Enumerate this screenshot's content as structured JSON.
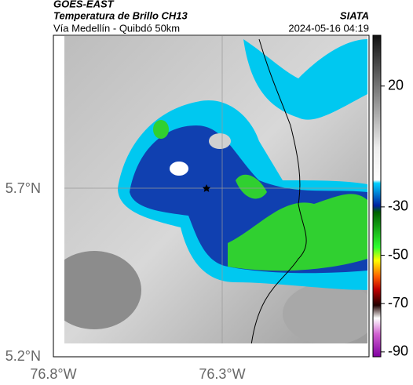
{
  "header": {
    "source": "GOES-EAST",
    "title": "Temperatura de Brillo CH13",
    "subtitle": "Vía Medellín - Quibdó 50km",
    "agency": "SIATA",
    "timestamp": "2024-05-16 04:19"
  },
  "map": {
    "lat_ticks": [
      "5.7°N",
      "5.2°N"
    ],
    "lon_ticks": [
      "76.8°W",
      "76.3°W"
    ]
  },
  "colorbar": {
    "lim": [
      41,
      -92
    ],
    "ticks": [
      20,
      -30,
      -50,
      -70,
      -90
    ]
  }
}
